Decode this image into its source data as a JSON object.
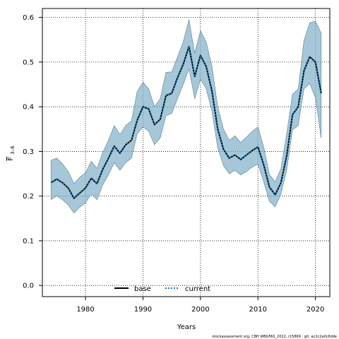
{
  "chart_data": {
    "type": "line",
    "title": "",
    "xlabel": "Years",
    "ylabel_main": "F",
    "ylabel_sub": "3–6",
    "xlim": [
      1972.5,
      2022.5
    ],
    "ylim": [
      -0.025,
      0.62
    ],
    "xticks": [
      1980,
      1990,
      2000,
      2010,
      2020
    ],
    "yticks": [
      0.0,
      0.1,
      0.2,
      0.3,
      0.4,
      0.5,
      0.6
    ],
    "ytick_labels": [
      "0.0",
      "0.1",
      "0.2",
      "0.3",
      "0.4",
      "0.5",
      "0.6"
    ],
    "grid": true,
    "legend_position": "bottom-left",
    "legend": [
      {
        "label": "base",
        "style": "solid",
        "color": "#000000"
      },
      {
        "label": "current",
        "style": "dotted",
        "color": "#1f77b4"
      }
    ],
    "band_color": "#7fafc8",
    "x": [
      1974,
      1975,
      1976,
      1977,
      1978,
      1979,
      1980,
      1981,
      1982,
      1983,
      1984,
      1985,
      1986,
      1987,
      1988,
      1989,
      1990,
      1991,
      1992,
      1993,
      1994,
      1995,
      1996,
      1997,
      1998,
      1999,
      2000,
      2001,
      2002,
      2003,
      2004,
      2005,
      2006,
      2007,
      2008,
      2009,
      2010,
      2011,
      2012,
      2013,
      2014,
      2015,
      2016,
      2017,
      2018,
      2019,
      2020,
      2021
    ],
    "series": [
      {
        "name": "base",
        "values": [
          0.23,
          0.238,
          0.23,
          0.218,
          0.195,
          0.207,
          0.218,
          0.24,
          0.228,
          0.26,
          0.285,
          0.312,
          0.296,
          0.315,
          0.325,
          0.37,
          0.4,
          0.395,
          0.36,
          0.372,
          0.425,
          0.43,
          0.465,
          0.495,
          0.535,
          0.468,
          0.515,
          0.49,
          0.435,
          0.35,
          0.305,
          0.285,
          0.292,
          0.282,
          0.292,
          0.302,
          0.31,
          0.27,
          0.22,
          0.203,
          0.23,
          0.29,
          0.382,
          0.4,
          0.48,
          0.512,
          0.5,
          0.43
        ]
      },
      {
        "name": "current",
        "values": [
          0.23,
          0.238,
          0.23,
          0.218,
          0.195,
          0.207,
          0.218,
          0.24,
          0.228,
          0.26,
          0.285,
          0.312,
          0.296,
          0.315,
          0.325,
          0.37,
          0.4,
          0.395,
          0.36,
          0.372,
          0.425,
          0.43,
          0.465,
          0.495,
          0.535,
          0.468,
          0.515,
          0.49,
          0.435,
          0.35,
          0.305,
          0.285,
          0.292,
          0.282,
          0.292,
          0.302,
          0.31,
          0.27,
          0.22,
          0.203,
          0.23,
          0.29,
          0.382,
          0.4,
          0.48,
          0.512,
          0.5,
          0.43
        ]
      }
    ],
    "band_upper": [
      0.28,
      0.285,
      0.272,
      0.255,
      0.228,
      0.242,
      0.252,
      0.278,
      0.262,
      0.298,
      0.325,
      0.358,
      0.338,
      0.358,
      0.368,
      0.435,
      0.455,
      0.44,
      0.4,
      0.418,
      0.477,
      0.478,
      0.512,
      0.545,
      0.595,
      0.52,
      0.57,
      0.545,
      0.49,
      0.4,
      0.35,
      0.325,
      0.335,
      0.32,
      0.332,
      0.345,
      0.355,
      0.31,
      0.248,
      0.232,
      0.262,
      0.34,
      0.428,
      0.44,
      0.548,
      0.588,
      0.592,
      0.565
    ],
    "band_lower": [
      0.192,
      0.2,
      0.192,
      0.18,
      0.162,
      0.175,
      0.185,
      0.205,
      0.192,
      0.225,
      0.248,
      0.275,
      0.258,
      0.275,
      0.285,
      0.34,
      0.355,
      0.345,
      0.315,
      0.33,
      0.38,
      0.385,
      0.418,
      0.45,
      0.485,
      0.418,
      0.462,
      0.44,
      0.39,
      0.308,
      0.268,
      0.25,
      0.258,
      0.247,
      0.255,
      0.265,
      0.272,
      0.232,
      0.188,
      0.176,
      0.205,
      0.258,
      0.348,
      0.358,
      0.44,
      0.452,
      0.42,
      0.33
    ]
  },
  "footer": {
    "note": "stockassessment.org, CBH  WBGFAS_2022, r15869 , git: ec2c2a0c6dde"
  }
}
